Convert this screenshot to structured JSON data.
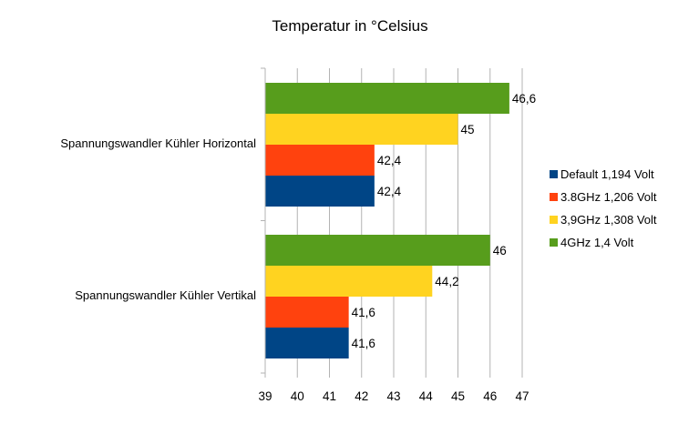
{
  "chart_data": {
    "type": "bar",
    "orientation": "horizontal",
    "title": "Temperatur in °Celsius",
    "categories": [
      "Spannungswandler Kühler Horizontal",
      "Spannungswandler Kühler Vertikal"
    ],
    "series": [
      {
        "name": "Default 1,194 Volt",
        "color": "#004586",
        "values": [
          42.4,
          41.6
        ],
        "labels": [
          "42,4",
          "41,6"
        ]
      },
      {
        "name": "3.8GHz 1,206 Volt",
        "color": "#ff420e",
        "values": [
          42.4,
          41.6
        ],
        "labels": [
          "42,4",
          "41,6"
        ]
      },
      {
        "name": "3,9GHz 1,308 Volt",
        "color": "#ffd320",
        "values": [
          45,
          44.2
        ],
        "labels": [
          "45",
          "44,2"
        ]
      },
      {
        "name": "4GHz 1,4 Volt",
        "color": "#579d1c",
        "values": [
          46.6,
          46
        ],
        "labels": [
          "46,6",
          "46"
        ]
      }
    ],
    "xlim": [
      39,
      47
    ],
    "xticks": [
      "39",
      "40",
      "41",
      "42",
      "43",
      "44",
      "45",
      "46",
      "47"
    ],
    "grid": true,
    "legend_position": "right"
  }
}
